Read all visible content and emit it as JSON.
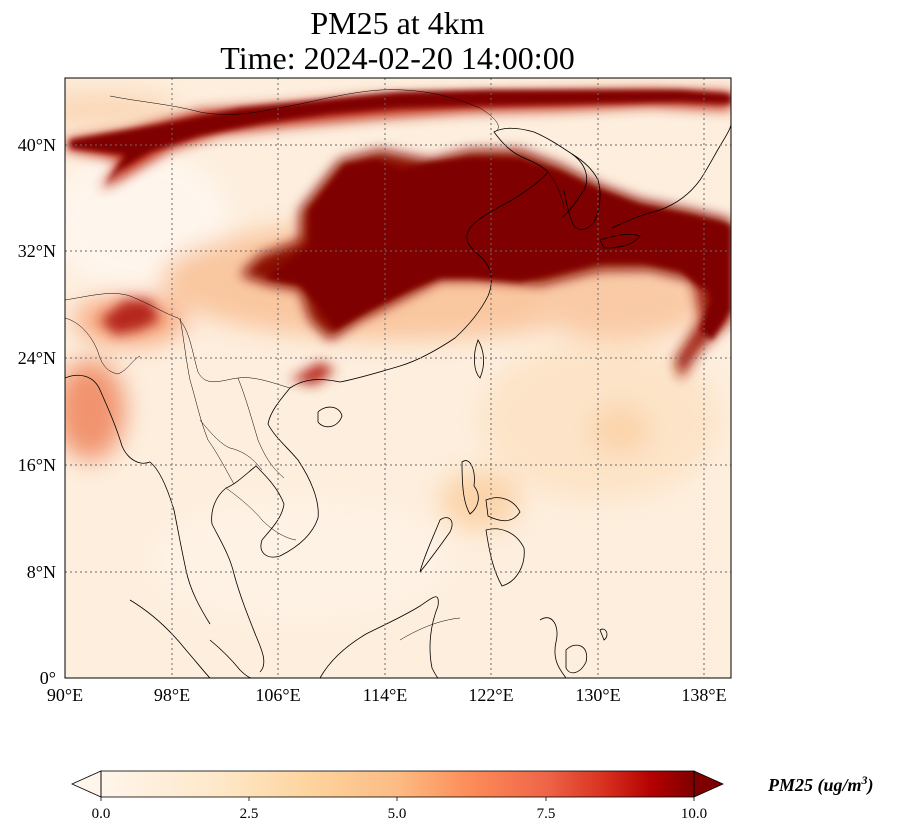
{
  "title": {
    "line1": "PM25 at 4km",
    "line2": "Time: 2024-02-20 14:00:00"
  },
  "map": {
    "lon_range": [
      90,
      140
    ],
    "lat_range": [
      0,
      45
    ],
    "lon_ticks": [
      "90°E",
      "98°E",
      "106°E",
      "114°E",
      "122°E",
      "130°E",
      "138°E"
    ],
    "lat_ticks": [
      "0°",
      "8°N",
      "16°N",
      "24°N",
      "32°N",
      "40°N"
    ],
    "gridlines": "dotted",
    "colormap": "OrRd",
    "colors": {
      "low": "#fff5eb",
      "mid": "#fdbb84",
      "high": "#7f0000",
      "grid": "#555555"
    }
  },
  "colorbar": {
    "ticks": [
      "0.0",
      "2.5",
      "5.0",
      "7.5",
      "10.0"
    ],
    "min": 0,
    "max": 10,
    "extend": "both",
    "label_prefix": "PM25 (ug/m",
    "label_exp": "3",
    "label_suffix": ")"
  }
}
